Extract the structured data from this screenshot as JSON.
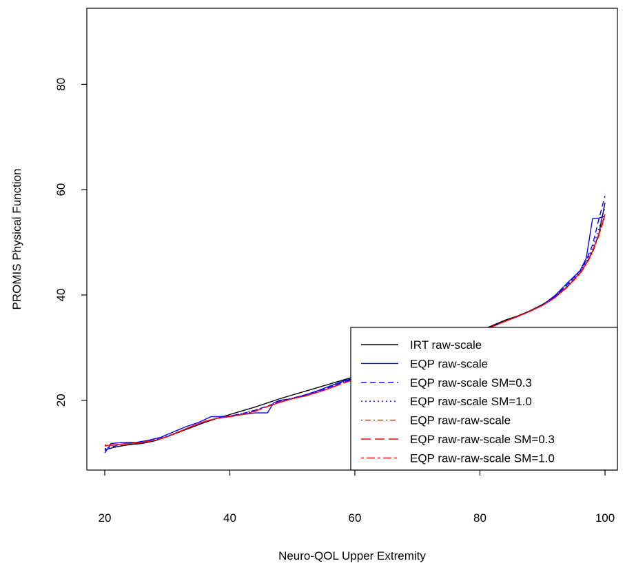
{
  "chart_data": {
    "type": "line",
    "title": "",
    "xlabel": "Neuro-QOL Upper Extremity",
    "ylabel": "PROMIS Physical Function",
    "xlim": [
      20,
      100
    ],
    "ylim": [
      9.5,
      93
    ],
    "xticks": [
      20,
      40,
      60,
      80,
      100
    ],
    "yticks": [
      20,
      40,
      60,
      80
    ],
    "grid": false,
    "legend_position": "bottom-right",
    "series": [
      {
        "name": "IRT raw-scale",
        "color": "#000000",
        "dash": "solid",
        "x": [
          20,
          22,
          24,
          26,
          28,
          30,
          32,
          34,
          36,
          38,
          40,
          42,
          44,
          46,
          48,
          50,
          52,
          54,
          56,
          58,
          60,
          62,
          64,
          66,
          68,
          70,
          72,
          74,
          76,
          78,
          80,
          82,
          84,
          86,
          88,
          90,
          92,
          94,
          96,
          97,
          98,
          99,
          100
        ],
        "y": [
          10.6,
          11.2,
          11.6,
          11.8,
          12.3,
          13.1,
          14.0,
          14.9,
          15.8,
          16.6,
          17.3,
          18.0,
          18.7,
          19.5,
          20.3,
          21.0,
          21.7,
          22.4,
          23.1,
          23.8,
          24.5,
          25.2,
          26.0,
          26.8,
          27.6,
          28.5,
          29.4,
          30.3,
          31.2,
          32.2,
          33.2,
          34.2,
          35.2,
          36.0,
          37.0,
          38.2,
          39.7,
          41.6,
          44.2,
          46.0,
          48.3,
          51.5,
          57.5
        ]
      },
      {
        "name": "EQP raw-scale",
        "color": "#0000ff",
        "dash": "solid",
        "x": [
          20,
          21,
          23,
          25,
          27,
          29,
          31,
          33,
          35,
          37,
          38,
          40,
          42,
          44,
          46,
          47,
          48,
          50,
          52,
          54,
          56,
          58,
          60,
          62,
          64,
          66,
          68,
          70,
          72,
          74,
          76,
          78,
          80,
          82,
          84,
          86,
          88,
          90,
          92,
          94,
          96,
          97,
          98,
          99,
          100
        ],
        "y": [
          10.0,
          11.8,
          12.0,
          12.0,
          12.4,
          13.0,
          14.0,
          15.0,
          15.8,
          16.9,
          16.9,
          17.0,
          17.3,
          17.6,
          17.6,
          19.5,
          20.0,
          20.3,
          21.0,
          21.8,
          22.7,
          23.6,
          24.3,
          25.0,
          25.8,
          26.6,
          27.4,
          28.3,
          29.2,
          30.1,
          31.0,
          32.0,
          33.0,
          34.0,
          35.0,
          35.9,
          36.9,
          38.1,
          39.9,
          42.3,
          44.6,
          47.0,
          54.5,
          54.6,
          55.0
        ]
      },
      {
        "name": "EQP raw-scale SM=0.3",
        "color": "#0000ff",
        "dash": "dashed",
        "x": [
          20,
          22,
          24,
          26,
          28,
          30,
          32,
          34,
          36,
          38,
          40,
          42,
          44,
          46,
          48,
          50,
          52,
          54,
          56,
          58,
          60,
          62,
          64,
          66,
          68,
          70,
          72,
          74,
          76,
          78,
          80,
          82,
          84,
          86,
          88,
          90,
          92,
          94,
          96,
          97,
          98,
          99,
          100
        ],
        "y": [
          10.5,
          11.5,
          11.9,
          12.0,
          12.4,
          13.1,
          14.1,
          15.0,
          15.9,
          16.6,
          17.0,
          17.5,
          18.1,
          18.9,
          19.8,
          20.4,
          21.0,
          21.7,
          22.5,
          23.4,
          24.2,
          25.0,
          25.8,
          26.6,
          27.4,
          28.3,
          29.2,
          30.1,
          31.0,
          32.0,
          33.0,
          34.0,
          35.0,
          35.9,
          36.9,
          38.1,
          39.8,
          42.0,
          44.6,
          46.6,
          49.5,
          54.3,
          58.8
        ]
      },
      {
        "name": "EQP raw-scale SM=1.0",
        "color": "#0000ff",
        "dash": "dotted",
        "x": [
          20,
          22,
          24,
          26,
          28,
          30,
          32,
          34,
          36,
          38,
          40,
          42,
          44,
          46,
          48,
          50,
          52,
          54,
          56,
          58,
          60,
          62,
          64,
          66,
          68,
          70,
          72,
          74,
          76,
          78,
          80,
          82,
          84,
          86,
          88,
          90,
          92,
          94,
          96,
          97,
          98,
          99,
          100
        ],
        "y": [
          10.8,
          11.6,
          11.9,
          12.1,
          12.5,
          13.2,
          14.1,
          15.0,
          15.9,
          16.6,
          17.0,
          17.5,
          18.1,
          18.9,
          19.7,
          20.4,
          21.0,
          21.7,
          22.5,
          23.4,
          24.2,
          25.0,
          25.8,
          26.6,
          27.4,
          28.3,
          29.2,
          30.1,
          31.0,
          32.0,
          33.0,
          34.0,
          35.0,
          35.9,
          36.9,
          38.1,
          39.7,
          41.9,
          44.4,
          46.3,
          48.9,
          52.5,
          56.6
        ]
      },
      {
        "name": "EQP raw-raw-scale",
        "color": "#ff0000",
        "dash": "dashdot",
        "x": [
          20,
          22,
          24,
          26,
          28,
          30,
          32,
          34,
          36,
          38,
          40,
          42,
          44,
          46,
          48,
          50,
          52,
          54,
          56,
          58,
          60,
          62,
          64,
          66,
          68,
          70,
          72,
          74,
          76,
          78,
          80,
          82,
          84,
          86,
          88,
          90,
          92,
          94,
          96,
          97,
          98,
          99,
          100
        ],
        "y": [
          11.5,
          11.6,
          11.8,
          12.0,
          12.4,
          13.1,
          14.1,
          15.1,
          16.0,
          16.6,
          16.9,
          17.3,
          17.9,
          18.8,
          19.7,
          20.3,
          20.8,
          21.5,
          22.3,
          23.2,
          24.0,
          24.9,
          25.7,
          26.5,
          27.3,
          28.2,
          29.1,
          30.0,
          31.0,
          32.0,
          33.0,
          34.0,
          35.0,
          35.9,
          36.9,
          38.0,
          39.5,
          41.5,
          44.0,
          45.8,
          48.0,
          51.2,
          55.0
        ]
      },
      {
        "name": "EQP raw-raw-scale SM=0.3",
        "color": "#ff0000",
        "dash": "longdash",
        "x": [
          20,
          22,
          24,
          26,
          28,
          30,
          32,
          34,
          36,
          38,
          40,
          42,
          44,
          46,
          48,
          50,
          52,
          54,
          56,
          58,
          60,
          62,
          64,
          66,
          68,
          70,
          72,
          74,
          76,
          78,
          80,
          82,
          84,
          86,
          88,
          90,
          92,
          94,
          96,
          97,
          98,
          99,
          100
        ],
        "y": [
          11.4,
          11.6,
          11.8,
          12.0,
          12.4,
          13.1,
          14.1,
          15.1,
          16.0,
          16.6,
          16.9,
          17.3,
          17.9,
          18.8,
          19.6,
          20.3,
          20.8,
          21.5,
          22.3,
          23.2,
          24.0,
          24.9,
          25.7,
          26.5,
          27.3,
          28.2,
          29.1,
          30.0,
          31.0,
          32.0,
          33.0,
          34.0,
          35.0,
          35.9,
          36.9,
          38.0,
          39.5,
          41.6,
          44.1,
          45.9,
          48.2,
          51.4,
          55.2
        ]
      },
      {
        "name": "EQP raw-raw-scale SM=1.0",
        "color": "#ff0000",
        "dash": "twodash",
        "x": [
          20,
          22,
          24,
          26,
          28,
          30,
          32,
          34,
          36,
          38,
          40,
          42,
          44,
          46,
          48,
          50,
          52,
          54,
          56,
          58,
          60,
          62,
          64,
          66,
          68,
          70,
          72,
          74,
          76,
          78,
          80,
          82,
          84,
          86,
          88,
          90,
          92,
          94,
          96,
          97,
          98,
          99,
          100
        ],
        "y": [
          11.3,
          11.6,
          11.8,
          12.0,
          12.4,
          13.1,
          14.1,
          15.1,
          16.0,
          16.6,
          16.9,
          17.3,
          17.9,
          18.8,
          19.6,
          20.3,
          20.8,
          21.5,
          22.3,
          23.2,
          24.0,
          24.9,
          25.7,
          26.5,
          27.3,
          28.2,
          29.1,
          30.0,
          31.0,
          32.0,
          33.0,
          34.0,
          35.0,
          35.9,
          36.9,
          38.0,
          39.5,
          41.6,
          44.2,
          46.0,
          48.3,
          51.5,
          55.3
        ]
      }
    ]
  }
}
